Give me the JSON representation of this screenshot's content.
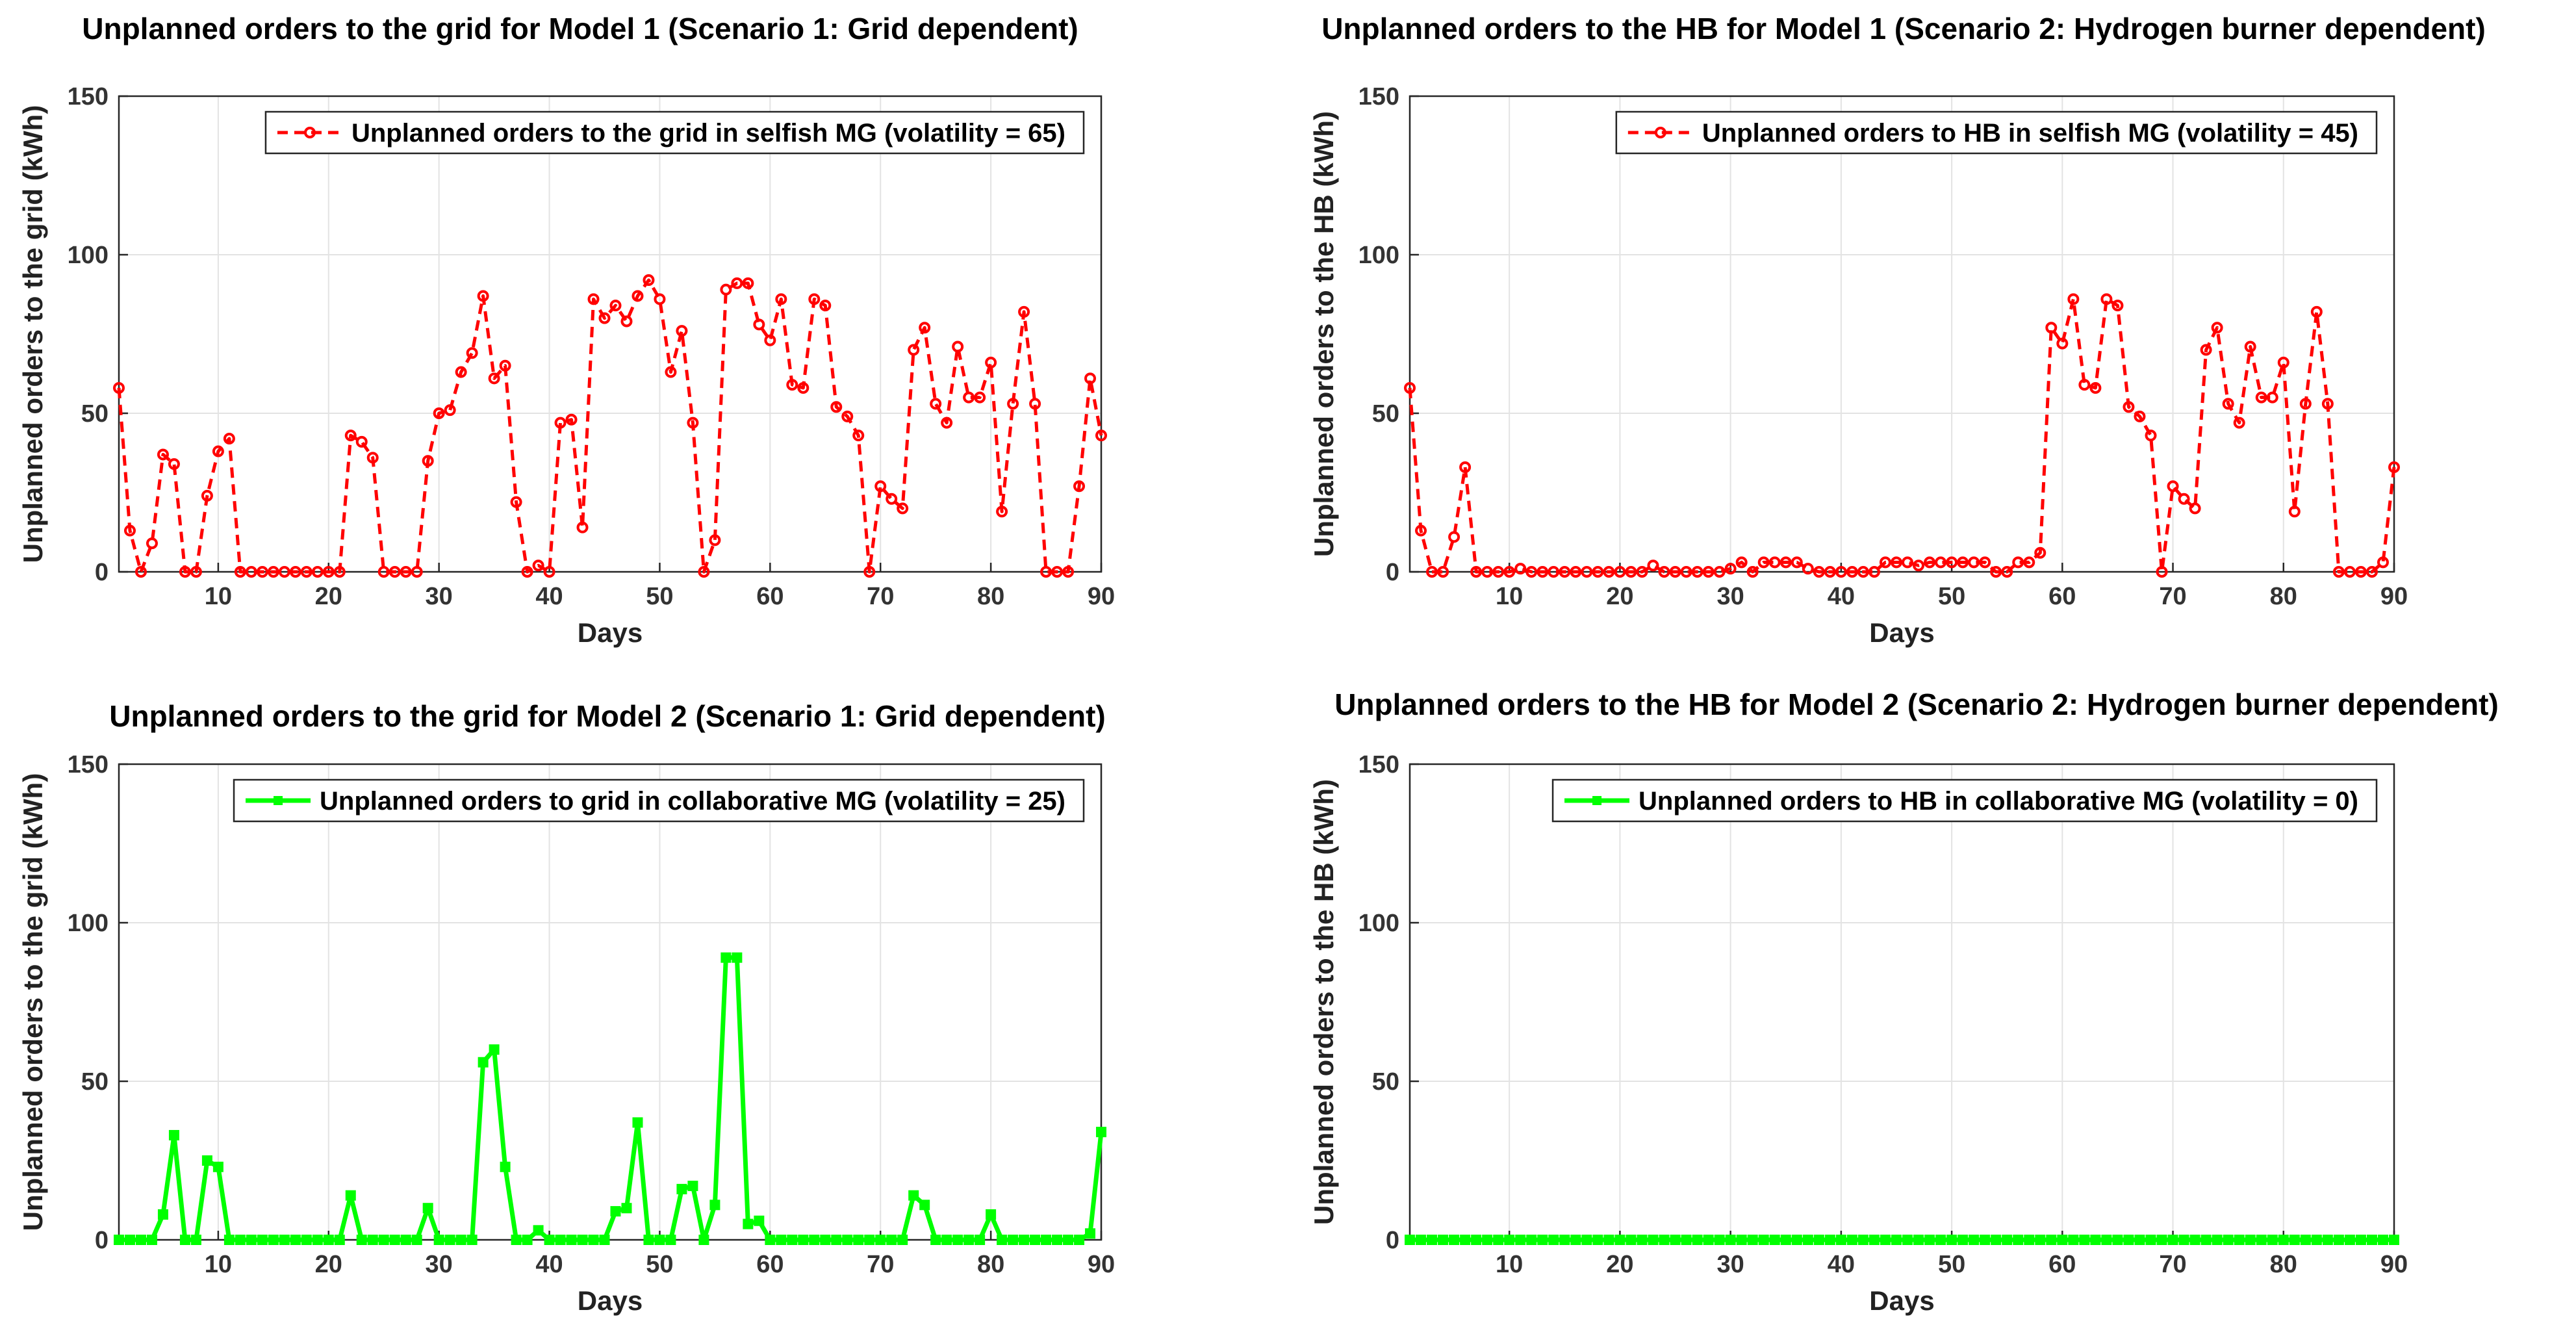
{
  "chart_data": [
    {
      "type": "line",
      "title": "Unplanned orders to the grid for Model 1 (Scenario 1: Grid dependent)",
      "xlabel": "Days",
      "ylabel": "Unplanned orders to the grid (kWh)",
      "xlim": [
        1,
        90
      ],
      "ylim": [
        0,
        150
      ],
      "xticks": [
        10,
        20,
        30,
        40,
        50,
        60,
        70,
        80,
        90
      ],
      "yticks": [
        0,
        50,
        100,
        150
      ],
      "grid": true,
      "legend_position": "top-right",
      "series": [
        {
          "name": "Unplanned orders to the grid in selfish MG (volatility = 65)",
          "color": "#ff0000",
          "line_style": "dashed",
          "marker": "circle",
          "x": [
            1,
            2,
            3,
            4,
            5,
            6,
            7,
            8,
            9,
            10,
            11,
            12,
            13,
            14,
            15,
            16,
            17,
            18,
            19,
            20,
            21,
            22,
            23,
            24,
            25,
            26,
            27,
            28,
            29,
            30,
            31,
            32,
            33,
            34,
            35,
            36,
            37,
            38,
            39,
            40,
            41,
            42,
            43,
            44,
            45,
            46,
            47,
            48,
            49,
            50,
            51,
            52,
            53,
            54,
            55,
            56,
            57,
            58,
            59,
            60,
            61,
            62,
            63,
            64,
            65,
            66,
            67,
            68,
            69,
            70,
            71,
            72,
            73,
            74,
            75,
            76,
            77,
            78,
            79,
            80,
            81,
            82,
            83,
            84,
            85,
            86,
            87,
            88,
            89,
            90
          ],
          "values": [
            58,
            13,
            0,
            9,
            37,
            34,
            0,
            0,
            24,
            38,
            42,
            0,
            0,
            0,
            0,
            0,
            0,
            0,
            0,
            0,
            0,
            43,
            41,
            36,
            0,
            0,
            0,
            0,
            35,
            50,
            51,
            63,
            69,
            87,
            61,
            65,
            22,
            0,
            2,
            0,
            47,
            48,
            14,
            86,
            80,
            84,
            79,
            87,
            92,
            86,
            63,
            76,
            47,
            0,
            10,
            89,
            91,
            91,
            78,
            73,
            86,
            59,
            58,
            86,
            84,
            52,
            49,
            43,
            0,
            27,
            23,
            20,
            70,
            77,
            53,
            47,
            71,
            55,
            55,
            66,
            19,
            53,
            82,
            53,
            0,
            0,
            0,
            27,
            61,
            43
          ]
        }
      ]
    },
    {
      "type": "line",
      "title": "Unplanned orders to the HB for Model 1 (Scenario 2: Hydrogen burner dependent)",
      "xlabel": "Days",
      "ylabel": "Unplanned orders to the HB (kWh)",
      "xlim": [
        1,
        90
      ],
      "ylim": [
        0,
        150
      ],
      "xticks": [
        10,
        20,
        30,
        40,
        50,
        60,
        70,
        80,
        90
      ],
      "yticks": [
        0,
        50,
        100,
        150
      ],
      "grid": true,
      "legend_position": "top-right",
      "series": [
        {
          "name": "Unplanned orders to HB in selfish MG (volatility = 45)",
          "color": "#ff0000",
          "line_style": "dashed",
          "marker": "circle",
          "x": [
            1,
            2,
            3,
            4,
            5,
            6,
            7,
            8,
            9,
            10,
            11,
            12,
            13,
            14,
            15,
            16,
            17,
            18,
            19,
            20,
            21,
            22,
            23,
            24,
            25,
            26,
            27,
            28,
            29,
            30,
            31,
            32,
            33,
            34,
            35,
            36,
            37,
            38,
            39,
            40,
            41,
            42,
            43,
            44,
            45,
            46,
            47,
            48,
            49,
            50,
            51,
            52,
            53,
            54,
            55,
            56,
            57,
            58,
            59,
            60,
            61,
            62,
            63,
            64,
            65,
            66,
            67,
            68,
            69,
            70,
            71,
            72,
            73,
            74,
            75,
            76,
            77,
            78,
            79,
            80,
            81,
            82,
            83,
            84,
            85,
            86,
            87,
            88,
            89,
            90
          ],
          "values": [
            58,
            13,
            0,
            0,
            11,
            33,
            0,
            0,
            0,
            0,
            1,
            0,
            0,
            0,
            0,
            0,
            0,
            0,
            0,
            0,
            0,
            0,
            2,
            0,
            0,
            0,
            0,
            0,
            0,
            1,
            3,
            0,
            3,
            3,
            3,
            3,
            1,
            0,
            0,
            0,
            0,
            0,
            0,
            3,
            3,
            3,
            2,
            3,
            3,
            3,
            3,
            3,
            3,
            0,
            0,
            3,
            3,
            6,
            77,
            72,
            86,
            59,
            58,
            86,
            84,
            52,
            49,
            43,
            0,
            27,
            23,
            20,
            70,
            77,
            53,
            47,
            71,
            55,
            55,
            66,
            19,
            53,
            82,
            53,
            0,
            0,
            0,
            0,
            3,
            33
          ]
        }
      ]
    },
    {
      "type": "line",
      "title": "Unplanned orders to the grid for Model 2 (Scenario 1: Grid dependent)",
      "xlabel": "Days",
      "ylabel": "Unplanned orders to the grid (kWh)",
      "xlim": [
        1,
        90
      ],
      "ylim": [
        0,
        150
      ],
      "xticks": [
        10,
        20,
        30,
        40,
        50,
        60,
        70,
        80,
        90
      ],
      "yticks": [
        0,
        50,
        100,
        150
      ],
      "grid": true,
      "legend_position": "top-right",
      "series": [
        {
          "name": "Unplanned orders to grid in collaborative MG (volatility = 25)",
          "color": "#00ff00",
          "line_style": "solid",
          "marker": "square",
          "x": [
            1,
            2,
            3,
            4,
            5,
            6,
            7,
            8,
            9,
            10,
            11,
            12,
            13,
            14,
            15,
            16,
            17,
            18,
            19,
            20,
            21,
            22,
            23,
            24,
            25,
            26,
            27,
            28,
            29,
            30,
            31,
            32,
            33,
            34,
            35,
            36,
            37,
            38,
            39,
            40,
            41,
            42,
            43,
            44,
            45,
            46,
            47,
            48,
            49,
            50,
            51,
            52,
            53,
            54,
            55,
            56,
            57,
            58,
            59,
            60,
            61,
            62,
            63,
            64,
            65,
            66,
            67,
            68,
            69,
            70,
            71,
            72,
            73,
            74,
            75,
            76,
            77,
            78,
            79,
            80,
            81,
            82,
            83,
            84,
            85,
            86,
            87,
            88,
            89,
            90
          ],
          "values": [
            0,
            0,
            0,
            0,
            8,
            33,
            0,
            0,
            25,
            23,
            0,
            0,
            0,
            0,
            0,
            0,
            0,
            0,
            0,
            0,
            0,
            14,
            0,
            0,
            0,
            0,
            0,
            0,
            10,
            0,
            0,
            0,
            0,
            56,
            60,
            23,
            0,
            0,
            3,
            0,
            0,
            0,
            0,
            0,
            0,
            9,
            10,
            37,
            0,
            0,
            0,
            16,
            17,
            0,
            11,
            89,
            89,
            5,
            6,
            0,
            0,
            0,
            0,
            0,
            0,
            0,
            0,
            0,
            0,
            0,
            0,
            0,
            14,
            11,
            0,
            0,
            0,
            0,
            0,
            8,
            0,
            0,
            0,
            0,
            0,
            0,
            0,
            0,
            2,
            34
          ]
        }
      ]
    },
    {
      "type": "line",
      "title": "Unplanned orders to the HB for Model 2 (Scenario 2: Hydrogen burner dependent)",
      "xlabel": "Days",
      "ylabel": "Unplanned orders to the HB (kWh)",
      "xlim": [
        1,
        90
      ],
      "ylim": [
        0,
        150
      ],
      "xticks": [
        10,
        20,
        30,
        40,
        50,
        60,
        70,
        80,
        90
      ],
      "yticks": [
        0,
        50,
        100,
        150
      ],
      "grid": true,
      "legend_position": "top-right",
      "series": [
        {
          "name": "Unplanned orders to HB in collaborative MG (volatility = 0)",
          "color": "#00ff00",
          "line_style": "solid",
          "marker": "square",
          "x": [
            1,
            2,
            3,
            4,
            5,
            6,
            7,
            8,
            9,
            10,
            11,
            12,
            13,
            14,
            15,
            16,
            17,
            18,
            19,
            20,
            21,
            22,
            23,
            24,
            25,
            26,
            27,
            28,
            29,
            30,
            31,
            32,
            33,
            34,
            35,
            36,
            37,
            38,
            39,
            40,
            41,
            42,
            43,
            44,
            45,
            46,
            47,
            48,
            49,
            50,
            51,
            52,
            53,
            54,
            55,
            56,
            57,
            58,
            59,
            60,
            61,
            62,
            63,
            64,
            65,
            66,
            67,
            68,
            69,
            70,
            71,
            72,
            73,
            74,
            75,
            76,
            77,
            78,
            79,
            80,
            81,
            82,
            83,
            84,
            85,
            86,
            87,
            88,
            89,
            90
          ],
          "values": [
            0,
            0,
            0,
            0,
            0,
            0,
            0,
            0,
            0,
            0,
            0,
            0,
            0,
            0,
            0,
            0,
            0,
            0,
            0,
            0,
            0,
            0,
            0,
            0,
            0,
            0,
            0,
            0,
            0,
            0,
            0,
            0,
            0,
            0,
            0,
            0,
            0,
            0,
            0,
            0,
            0,
            0,
            0,
            0,
            0,
            0,
            0,
            0,
            0,
            0,
            0,
            0,
            0,
            0,
            0,
            0,
            0,
            0,
            0,
            0,
            0,
            0,
            0,
            0,
            0,
            0,
            0,
            0,
            0,
            0,
            0,
            0,
            0,
            0,
            0,
            0,
            0,
            0,
            0,
            0,
            0,
            0,
            0,
            0,
            0,
            0,
            0,
            0,
            0,
            0
          ]
        }
      ]
    }
  ]
}
